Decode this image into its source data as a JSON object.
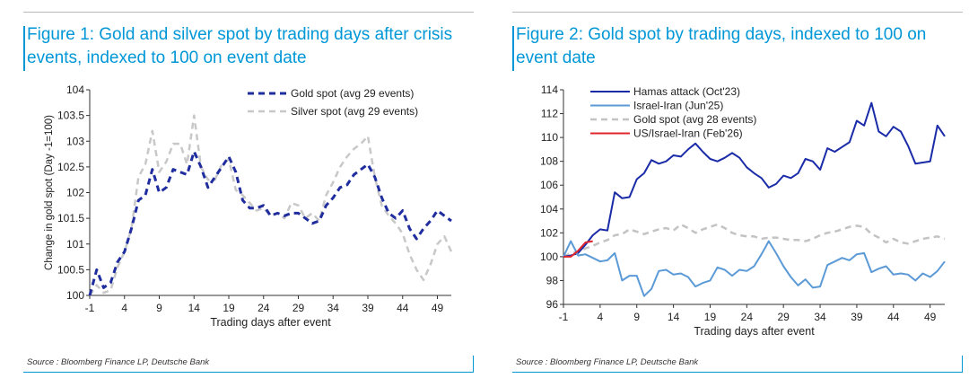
{
  "figures": [
    {
      "title": "Figure 1: Gold and silver spot by trading days after crisis events, indexed to 100 on event date",
      "source": "Source : Bloomberg Finance LP, Deutsche Bank"
    },
    {
      "title": "Figure 2: Gold spot by trading days, indexed to 100 on event date",
      "source": "Source : Bloomberg Finance LP, Deutsche Bank"
    }
  ],
  "chart_data": [
    {
      "type": "line",
      "title": "Figure 1: Gold and silver spot by trading days after crisis events, indexed to 100 on event date",
      "xlabel": "Trading days after event",
      "ylabel": "Change in gold spot (Day -1=100)",
      "xlim": [
        -1,
        51
      ],
      "ylim": [
        100,
        104
      ],
      "xticks": [
        "-1",
        "4",
        "9",
        "14",
        "19",
        "24",
        "29",
        "34",
        "39",
        "44",
        "49"
      ],
      "yticks": [
        "100",
        "100.5",
        "101",
        "101.5",
        "102",
        "102.5",
        "103",
        "103.5",
        "104"
      ],
      "legend_position": "top-right",
      "x": [
        -1,
        0,
        1,
        2,
        3,
        4,
        5,
        6,
        7,
        8,
        9,
        10,
        11,
        12,
        13,
        14,
        15,
        16,
        17,
        18,
        19,
        20,
        21,
        22,
        23,
        24,
        25,
        26,
        27,
        28,
        29,
        30,
        31,
        32,
        33,
        34,
        35,
        36,
        37,
        38,
        39,
        40,
        41,
        42,
        43,
        44,
        45,
        46,
        47,
        48,
        49,
        50,
        51
      ],
      "series": [
        {
          "name": "Gold spot (avg 29 events)",
          "color": "#1f2d9f",
          "dash": "dashed-dark",
          "values": [
            100.0,
            100.5,
            100.15,
            100.25,
            100.65,
            100.85,
            101.3,
            101.85,
            101.95,
            102.45,
            102.0,
            102.1,
            102.45,
            102.4,
            102.35,
            102.8,
            102.5,
            102.1,
            102.3,
            102.5,
            102.7,
            102.4,
            101.85,
            101.7,
            101.7,
            101.75,
            101.55,
            101.6,
            101.55,
            101.6,
            101.6,
            101.5,
            101.4,
            101.45,
            101.75,
            101.9,
            102.1,
            102.15,
            102.35,
            102.45,
            102.55,
            102.3,
            101.9,
            101.6,
            101.5,
            101.65,
            101.3,
            101.1,
            101.3,
            101.45,
            101.65,
            101.55,
            101.45
          ]
        },
        {
          "name": "Silver spot (avg 29 events)",
          "color": "#c8c8c8",
          "dash": "dashed-light",
          "values": [
            100.0,
            100.2,
            100.05,
            100.1,
            100.55,
            100.85,
            101.3,
            102.3,
            102.55,
            103.2,
            102.4,
            102.6,
            102.95,
            102.95,
            102.55,
            103.5,
            102.5,
            102.25,
            102.25,
            102.55,
            102.65,
            102.05,
            101.95,
            101.8,
            101.65,
            101.7,
            101.55,
            101.6,
            101.5,
            101.8,
            101.75,
            101.5,
            101.6,
            101.45,
            101.95,
            102.2,
            102.5,
            102.7,
            102.85,
            102.95,
            103.1,
            102.3,
            101.75,
            101.55,
            101.4,
            101.2,
            100.8,
            100.5,
            100.3,
            100.6,
            101.0,
            101.15,
            100.85
          ]
        }
      ]
    },
    {
      "type": "line",
      "title": "Figure 2: Gold spot by trading days, indexed to 100 on event date",
      "xlabel": "Trading days after event",
      "ylabel": "",
      "xlim": [
        -1,
        51
      ],
      "ylim": [
        96,
        114
      ],
      "xticks": [
        "-1",
        "4",
        "9",
        "14",
        "19",
        "24",
        "29",
        "34",
        "39",
        "44",
        "49"
      ],
      "yticks": [
        "96",
        "98",
        "100",
        "102",
        "104",
        "106",
        "108",
        "110",
        "112",
        "114"
      ],
      "legend_position": "top-left",
      "series": [
        {
          "name": "Hamas attack (Oct'23)",
          "color": "#1a2ba8",
          "dash": "solid",
          "x": [
            -1,
            0,
            1,
            2,
            3,
            4,
            5,
            6,
            7,
            8,
            9,
            10,
            11,
            12,
            13,
            14,
            15,
            16,
            17,
            18,
            19,
            20,
            21,
            22,
            23,
            24,
            25,
            26,
            27,
            28,
            29,
            30,
            31,
            32,
            33,
            34,
            35,
            36,
            37,
            38,
            39,
            40,
            41,
            42,
            43,
            44,
            45,
            46,
            47,
            48,
            49,
            50,
            51
          ],
          "values": [
            100.0,
            100.1,
            100.3,
            101.0,
            101.8,
            102.3,
            102.2,
            105.4,
            104.9,
            105.0,
            106.5,
            107.0,
            108.1,
            107.8,
            108.0,
            108.5,
            108.4,
            109.0,
            109.5,
            108.8,
            108.2,
            108.0,
            108.3,
            108.7,
            108.3,
            107.5,
            107.0,
            106.6,
            105.8,
            106.1,
            106.8,
            106.6,
            107.0,
            108.2,
            108.0,
            107.3,
            109.1,
            108.8,
            109.2,
            109.6,
            111.4,
            111.0,
            112.9,
            110.5,
            110.1,
            110.9,
            110.5,
            109.3,
            107.8,
            107.9,
            108.0,
            111.0,
            110.1
          ]
        },
        {
          "name": "Israel-Iran (Jun'25)",
          "color": "#5b9ad6",
          "dash": "solid",
          "x": [
            -1,
            0,
            1,
            2,
            3,
            4,
            5,
            6,
            7,
            8,
            9,
            10,
            11,
            12,
            13,
            14,
            15,
            16,
            17,
            18,
            19,
            20,
            21,
            22,
            23,
            24,
            25,
            26,
            27,
            28,
            29,
            30,
            31,
            32,
            33,
            34,
            35,
            36,
            37,
            38,
            39,
            40,
            41,
            42,
            43,
            44,
            45,
            46,
            47,
            48,
            49,
            50,
            51
          ],
          "values": [
            100.0,
            101.3,
            100.1,
            100.2,
            99.9,
            99.6,
            99.7,
            100.3,
            98.0,
            98.4,
            98.4,
            96.7,
            97.3,
            98.8,
            98.9,
            98.5,
            98.6,
            98.3,
            97.5,
            97.8,
            98.0,
            99.1,
            98.9,
            98.4,
            98.9,
            98.8,
            99.2,
            100.2,
            101.3,
            100.3,
            99.2,
            98.3,
            97.6,
            98.1,
            97.4,
            97.5,
            99.3,
            99.6,
            99.9,
            99.7,
            100.2,
            100.3,
            98.7,
            99.0,
            99.2,
            98.5,
            98.6,
            98.5,
            98.0,
            98.6,
            98.3,
            98.8,
            99.6
          ]
        },
        {
          "name": "Gold spot (avg 28 events)",
          "color": "#c3c3c3",
          "dash": "dashed-light",
          "x": [
            -1,
            0,
            1,
            2,
            3,
            4,
            5,
            6,
            7,
            8,
            9,
            10,
            11,
            12,
            13,
            14,
            15,
            16,
            17,
            18,
            19,
            20,
            21,
            22,
            23,
            24,
            25,
            26,
            27,
            28,
            29,
            30,
            31,
            32,
            33,
            34,
            35,
            36,
            37,
            38,
            39,
            40,
            41,
            42,
            43,
            44,
            45,
            46,
            47,
            48,
            49,
            50,
            51
          ],
          "values": [
            100.0,
            100.3,
            100.4,
            100.7,
            100.9,
            101.2,
            101.4,
            101.8,
            101.9,
            102.3,
            102.1,
            101.9,
            102.1,
            102.3,
            102.4,
            102.2,
            102.7,
            102.4,
            102.0,
            102.3,
            102.5,
            102.7,
            102.4,
            102.0,
            101.8,
            101.7,
            101.7,
            101.5,
            101.6,
            101.6,
            101.5,
            101.4,
            101.4,
            101.3,
            101.5,
            101.8,
            102.0,
            102.1,
            102.3,
            102.5,
            102.6,
            102.5,
            101.9,
            101.6,
            101.2,
            101.5,
            101.2,
            101.1,
            101.3,
            101.5,
            101.6,
            101.7,
            101.5
          ]
        },
        {
          "name": "US/Israel-Iran (Feb'26)",
          "color": "#e0262d",
          "dash": "solid",
          "x": [
            -1,
            0,
            1,
            2,
            3
          ],
          "values": [
            100.0,
            100.0,
            100.5,
            101.2,
            101.3
          ]
        }
      ]
    }
  ]
}
